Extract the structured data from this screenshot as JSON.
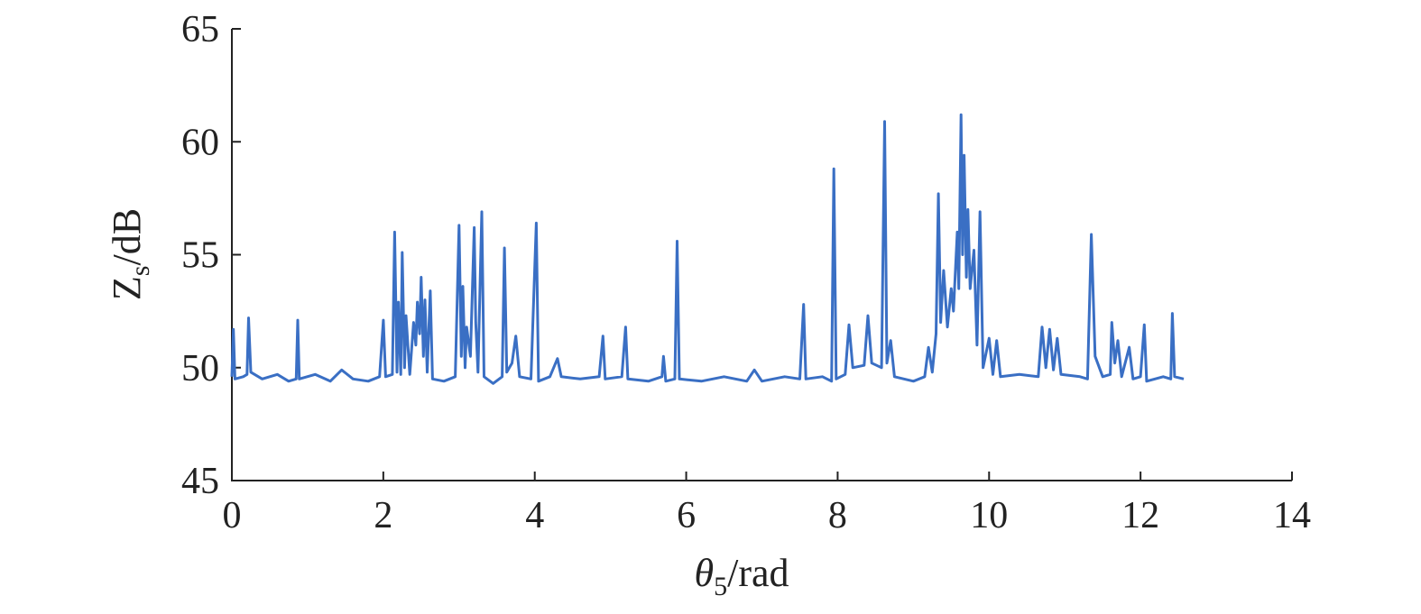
{
  "chart_data": {
    "type": "line",
    "xlabel": {
      "symbol": "θ",
      "subscript": "5",
      "unit": "/rad"
    },
    "ylabel": {
      "symbol": "Z",
      "subscript": "s",
      "unit": "/dB"
    },
    "xlim": [
      0,
      14
    ],
    "xticks": [
      0,
      2,
      4,
      6,
      8,
      10,
      12,
      14
    ],
    "ylim": [
      45,
      65
    ],
    "yticks": [
      45,
      50,
      55,
      60,
      65
    ],
    "series": [
      {
        "color": "#3a6fc4",
        "x": [
          0,
          0.02,
          0.04,
          0.15,
          0.2,
          0.22,
          0.25,
          0.4,
          0.6,
          0.75,
          0.85,
          0.87,
          0.89,
          1.1,
          1.3,
          1.45,
          1.6,
          1.8,
          1.95,
          2.0,
          2.03,
          2.12,
          2.15,
          2.18,
          2.2,
          2.23,
          2.25,
          2.28,
          2.3,
          2.35,
          2.4,
          2.43,
          2.45,
          2.48,
          2.5,
          2.53,
          2.55,
          2.58,
          2.62,
          2.65,
          2.8,
          2.95,
          3.0,
          3.03,
          3.05,
          3.08,
          3.1,
          3.15,
          3.2,
          3.22,
          3.25,
          3.3,
          3.33,
          3.45,
          3.57,
          3.6,
          3.63,
          3.7,
          3.75,
          3.8,
          3.95,
          4.02,
          4.05,
          4.2,
          4.3,
          4.35,
          4.6,
          4.85,
          4.9,
          4.93,
          5.15,
          5.2,
          5.23,
          5.5,
          5.68,
          5.7,
          5.73,
          5.85,
          5.88,
          5.91,
          6.2,
          6.5,
          6.8,
          6.9,
          7.0,
          7.3,
          7.5,
          7.55,
          7.58,
          7.8,
          7.92,
          7.95,
          7.98,
          8.1,
          8.15,
          8.2,
          8.35,
          8.4,
          8.45,
          8.58,
          8.62,
          8.65,
          8.7,
          8.75,
          9.0,
          9.15,
          9.2,
          9.25,
          9.3,
          9.33,
          9.36,
          9.4,
          9.45,
          9.5,
          9.53,
          9.58,
          9.6,
          9.63,
          9.65,
          9.67,
          9.7,
          9.72,
          9.75,
          9.8,
          9.84,
          9.88,
          9.92,
          10.0,
          10.05,
          10.1,
          10.15,
          10.4,
          10.65,
          10.7,
          10.75,
          10.8,
          10.85,
          10.9,
          10.95,
          11.2,
          11.3,
          11.35,
          11.4,
          11.5,
          11.6,
          11.62,
          11.66,
          11.7,
          11.75,
          11.85,
          11.9,
          12.0,
          12.05,
          12.08,
          12.3,
          12.4,
          12.42,
          12.45,
          12.57
        ],
        "values": [
          49.6,
          51.7,
          49.5,
          49.6,
          49.7,
          52.2,
          49.8,
          49.5,
          49.7,
          49.4,
          49.5,
          52.1,
          49.5,
          49.7,
          49.4,
          49.9,
          49.5,
          49.4,
          49.6,
          52.1,
          49.6,
          49.7,
          56.0,
          49.8,
          52.9,
          49.7,
          55.1,
          50.0,
          52.3,
          49.7,
          52.0,
          51.0,
          52.9,
          51.5,
          54.0,
          50.5,
          53.0,
          49.8,
          53.4,
          49.5,
          49.4,
          49.6,
          56.3,
          50.5,
          53.6,
          50.0,
          51.8,
          50.5,
          56.2,
          52.0,
          49.8,
          56.9,
          49.6,
          49.3,
          49.6,
          55.3,
          49.8,
          50.2,
          51.4,
          49.6,
          49.5,
          56.4,
          49.4,
          49.6,
          50.4,
          49.6,
          49.5,
          49.6,
          51.4,
          49.5,
          49.6,
          51.8,
          49.5,
          49.4,
          49.6,
          50.5,
          49.4,
          49.5,
          55.6,
          49.5,
          49.4,
          49.6,
          49.4,
          49.9,
          49.4,
          49.6,
          49.5,
          52.8,
          49.5,
          49.6,
          49.4,
          58.8,
          49.5,
          49.7,
          51.9,
          50.0,
          50.1,
          52.3,
          50.2,
          50.0,
          60.9,
          50.2,
          51.2,
          49.6,
          49.4,
          49.6,
          50.9,
          49.8,
          51.5,
          57.7,
          52.0,
          54.3,
          51.8,
          53.5,
          52.5,
          56.0,
          53.5,
          61.2,
          55.0,
          59.4,
          54.0,
          57.0,
          53.5,
          55.2,
          51.0,
          56.9,
          50.0,
          51.3,
          49.7,
          51.2,
          49.6,
          49.7,
          49.6,
          51.8,
          50.0,
          51.7,
          49.9,
          51.3,
          49.7,
          49.6,
          49.5,
          55.9,
          50.5,
          49.6,
          49.7,
          52.0,
          50.2,
          51.2,
          49.6,
          50.9,
          49.5,
          49.6,
          51.9,
          49.4,
          49.6,
          49.5,
          52.4,
          49.6,
          49.5
        ]
      }
    ]
  }
}
